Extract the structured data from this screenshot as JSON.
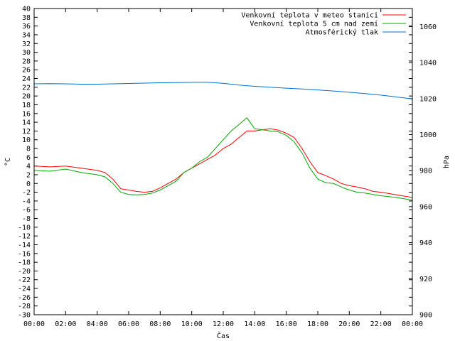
{
  "chart_data": {
    "type": "line",
    "xlabel": "Čas",
    "ylabel_left": "°C",
    "ylabel_right": "hPa",
    "x_ticks": [
      "00:00",
      "02:00",
      "04:00",
      "06:00",
      "08:00",
      "10:00",
      "12:00",
      "14:00",
      "16:00",
      "18:00",
      "20:00",
      "22:00",
      "00:00"
    ],
    "x_unit": "hour",
    "xlim": [
      0,
      24
    ],
    "ylim_left": [
      -30,
      40
    ],
    "ytick_step_left": 2,
    "ylim_right": [
      900,
      1070
    ],
    "ytick_step_right": 20,
    "grid": false,
    "legend_position": "top-right",
    "series": [
      {
        "name": "Venkovní teplota v meteo stanici",
        "axis": "left",
        "color": "#ff0000",
        "x": [
          0,
          1,
          2,
          3,
          4,
          4.5,
          5,
          5.5,
          6,
          6.5,
          7,
          7.5,
          8,
          8.5,
          9,
          9.5,
          10,
          10.5,
          11,
          11.5,
          12,
          12.5,
          13,
          13.5,
          14,
          14.5,
          15,
          15.5,
          16,
          16.5,
          17,
          17.5,
          18,
          18.5,
          19,
          19.5,
          20,
          20.5,
          21,
          21.5,
          22,
          22.5,
          23,
          24
        ],
        "y": [
          4,
          3.8,
          4,
          3.5,
          3,
          2.5,
          1,
          -1.2,
          -1.5,
          -1.8,
          -2,
          -1.8,
          -1,
          0,
          1,
          2.5,
          3.5,
          4.5,
          5.5,
          6.5,
          8,
          9,
          10.5,
          12,
          12,
          12.3,
          12.5,
          12.2,
          11.5,
          10.5,
          8,
          5,
          2.5,
          1.8,
          1,
          0,
          -0.5,
          -0.8,
          -1.2,
          -1.8,
          -2,
          -2.3,
          -2.6,
          -3.2
        ]
      },
      {
        "name": "Venkovní teplota 5 cm nad zemí",
        "axis": "left",
        "color": "#00aa00",
        "x": [
          0,
          1,
          2,
          3,
          4,
          4.5,
          5,
          5.5,
          6,
          6.5,
          7,
          7.5,
          8,
          8.5,
          9,
          9.5,
          10,
          10.5,
          11,
          11.5,
          12,
          12.5,
          13,
          13.5,
          14,
          14.5,
          15,
          15.5,
          16,
          16.5,
          17,
          17.5,
          18,
          18.5,
          19,
          19.5,
          20,
          20.5,
          21,
          21.5,
          22,
          22.5,
          23,
          24
        ],
        "y": [
          3,
          2.8,
          3.3,
          2.5,
          2,
          1.5,
          0,
          -2,
          -2.5,
          -2.6,
          -2.5,
          -2.2,
          -1.5,
          -0.5,
          0.5,
          2.5,
          3.5,
          5,
          6,
          8,
          10,
          12,
          13.5,
          15,
          12.5,
          12.3,
          12,
          11.8,
          11,
          9.5,
          7,
          3.5,
          1,
          0.2,
          0,
          -0.8,
          -1.5,
          -2,
          -2.2,
          -2.5,
          -2.8,
          -3,
          -3.2,
          -3.8
        ]
      },
      {
        "name": "Atmosférický tlak",
        "axis": "right",
        "color": "#0070d0",
        "x": [
          0,
          1,
          2,
          3,
          4,
          5,
          6,
          7,
          8,
          9,
          10,
          11,
          12,
          13,
          14,
          15,
          16,
          17,
          18,
          19,
          20,
          21,
          22,
          23,
          24
        ],
        "y": [
          1028.2,
          1028.3,
          1028.2,
          1028.0,
          1028.0,
          1028.2,
          1028.4,
          1028.6,
          1028.8,
          1028.9,
          1029.0,
          1029.0,
          1028.5,
          1027.5,
          1026.8,
          1026.3,
          1025.8,
          1025.3,
          1024.8,
          1024.2,
          1023.5,
          1022.8,
          1021.9,
          1020.9,
          1019.8
        ]
      }
    ]
  }
}
